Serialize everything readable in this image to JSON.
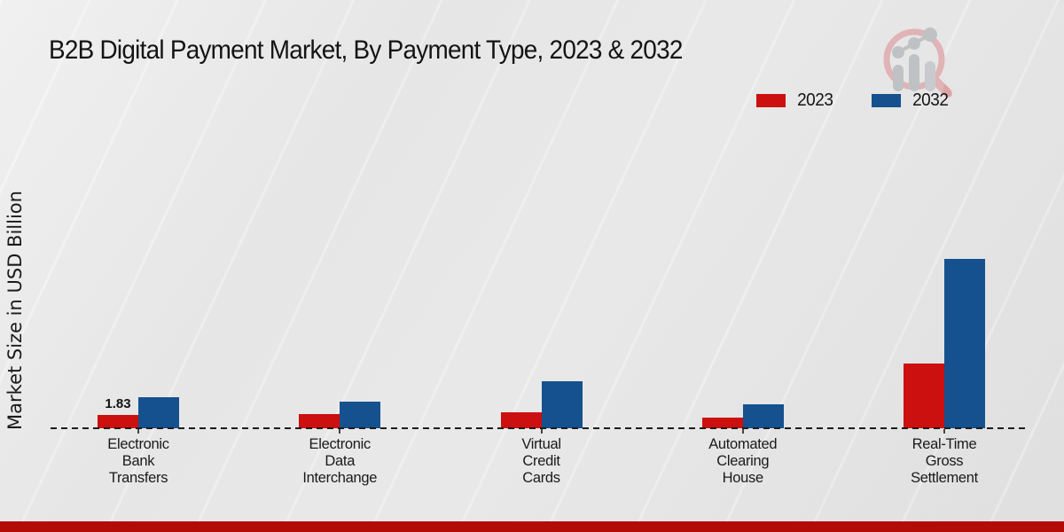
{
  "title": "B2B Digital Payment Market, By Payment Type, 2023 & 2032",
  "ylabel": "Market Size in USD Billion",
  "colors": {
    "series_2023": "#cc0f0f",
    "series_2032": "#14518e",
    "footer_bar": "#b30c06",
    "text": "#1a1a1a",
    "baseline": "#1c1c1c"
  },
  "legend": {
    "position": "top-right",
    "items": [
      {
        "label": "2023",
        "color": "#cc0f0f"
      },
      {
        "label": "2032",
        "color": "#14518e"
      }
    ]
  },
  "watermark_icon": "magnifier-bar-chart-logo",
  "chart_data": {
    "type": "bar",
    "title": "B2B Digital Payment Market, By Payment Type, 2023 & 2032",
    "xlabel": "",
    "ylabel": "Market Size in USD Billion",
    "grid": false,
    "legend_position": "top-right",
    "ylim": [
      0,
      25
    ],
    "baseline_style": "dashed",
    "categories": [
      "Electronic\nBank\nTransfers",
      "Electronic\nData\nInterchange",
      "Virtual\nCredit\nCards",
      "Automated\nClearing\nHouse",
      "Real-Time\nGross\nSettlement"
    ],
    "series": [
      {
        "name": "2023",
        "color": "#cc0f0f",
        "values": [
          1.83,
          2.0,
          2.2,
          1.5,
          8.9
        ]
      },
      {
        "name": "2032",
        "color": "#14518e",
        "values": [
          4.3,
          3.6,
          6.5,
          3.3,
          23.3
        ]
      }
    ],
    "annotations": [
      {
        "series": "2023",
        "category_index": 0,
        "text": "1.83"
      }
    ]
  }
}
